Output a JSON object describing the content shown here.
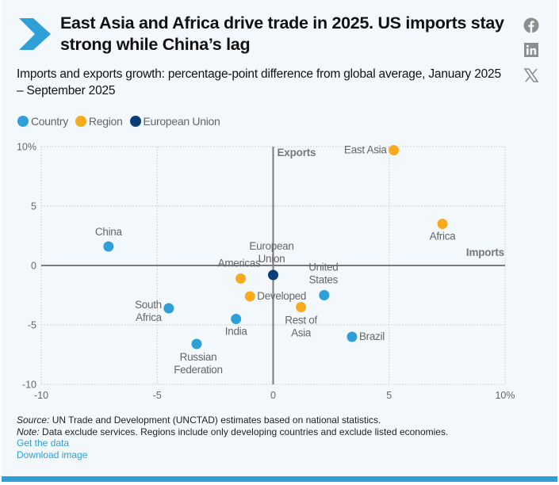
{
  "header": {
    "title": "East Asia and Africa drive trade in 2025. US imports stay strong while China’s lag",
    "subtitle": "Imports and exports growth: percentage-point difference from global average, January 2025 – September 2025",
    "logo_icon": "chevron-right-icon"
  },
  "social": [
    {
      "name": "facebook",
      "icon": "facebook-icon"
    },
    {
      "name": "linkedin",
      "icon": "linkedin-icon"
    },
    {
      "name": "x",
      "icon": "x-twitter-icon"
    }
  ],
  "colors": {
    "country": "#2f9fd8",
    "region": "#f9ab1d",
    "eu": "#0a3d7a",
    "accent": "#2f9fd8",
    "axis": "#7a7a7a",
    "grid": "#c8c8c8",
    "background": "#f2f8fc"
  },
  "legend": [
    {
      "label": "Country",
      "key": "country"
    },
    {
      "label": "Region",
      "key": "region"
    },
    {
      "label": "European Union",
      "key": "eu"
    }
  ],
  "chart_data": {
    "type": "scatter",
    "title": "Imports and exports growth: percentage-point difference from global average",
    "xlabel": "Imports",
    "ylabel": "Exports",
    "xlim": [
      -10,
      10
    ],
    "ylim": [
      -10,
      10
    ],
    "x_ticks": [
      "-10",
      "-5",
      "0",
      "5",
      "10%"
    ],
    "y_ticks": [
      "10%",
      "5",
      "0",
      "-5",
      "-10"
    ],
    "grid": true,
    "legend_position": "top-left",
    "points": [
      {
        "name": "East Asia",
        "label_lines": [
          "East Asia"
        ],
        "group": "region",
        "x": 5.2,
        "y": 9.7
      },
      {
        "name": "Africa",
        "label_lines": [
          "Africa"
        ],
        "group": "region",
        "x": 7.3,
        "y": 3.5
      },
      {
        "name": "China",
        "label_lines": [
          "China"
        ],
        "group": "country",
        "x": -7.1,
        "y": 1.6
      },
      {
        "name": "European Union",
        "label_lines": [
          "European",
          "Union"
        ],
        "group": "eu",
        "x": 0.0,
        "y": -0.8
      },
      {
        "name": "Americas",
        "label_lines": [
          "Americas"
        ],
        "group": "region",
        "x": -1.4,
        "y": -1.1
      },
      {
        "name": "Developed",
        "label_lines": [
          "Developed"
        ],
        "group": "region",
        "x": -1.0,
        "y": -2.6
      },
      {
        "name": "United States",
        "label_lines": [
          "United",
          "States"
        ],
        "group": "country",
        "x": 2.2,
        "y": -2.5
      },
      {
        "name": "Rest of Asia",
        "label_lines": [
          "Rest of",
          "Asia"
        ],
        "group": "region",
        "x": 1.2,
        "y": -3.5
      },
      {
        "name": "South Africa",
        "label_lines": [
          "South",
          "Africa"
        ],
        "group": "country",
        "x": -4.5,
        "y": -3.6
      },
      {
        "name": "India",
        "label_lines": [
          "India"
        ],
        "group": "country",
        "x": -1.6,
        "y": -4.5
      },
      {
        "name": "Brazil",
        "label_lines": [
          "Brazil"
        ],
        "group": "country",
        "x": 3.4,
        "y": -6.0
      },
      {
        "name": "Russian Federation",
        "label_lines": [
          "Russian",
          "Federation"
        ],
        "group": "country",
        "x": -3.3,
        "y": -6.6
      }
    ]
  },
  "footer": {
    "source_label": "Source:",
    "source_text": " UN Trade and Development (UNCTAD) estimates based on national statistics.",
    "note_label": "Note:",
    "note_text": " Data exclude services. Regions include only developing countries and exclude listed economies.",
    "get_data": "Get the data",
    "download_image": "Download image"
  }
}
